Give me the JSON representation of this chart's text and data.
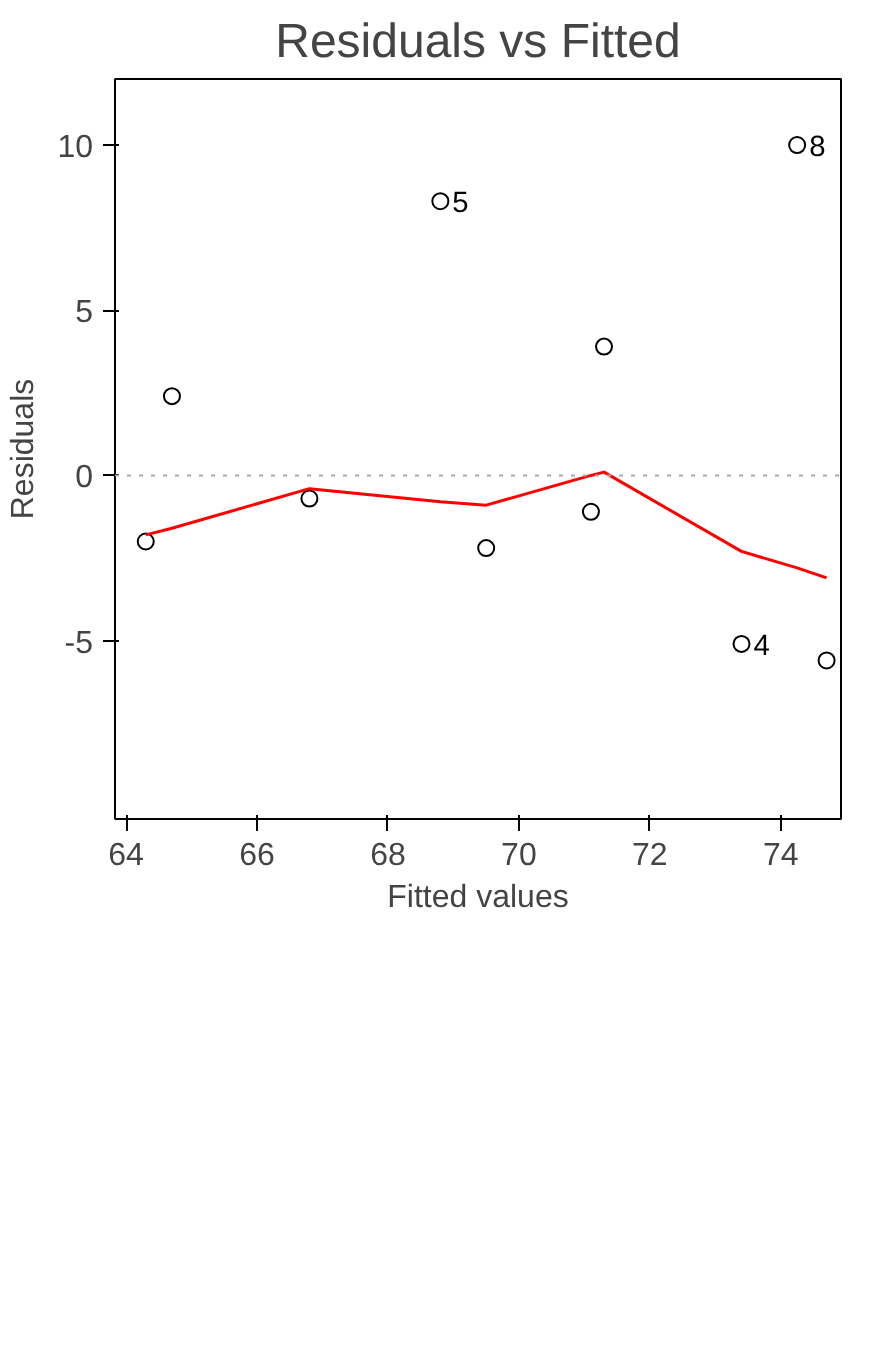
{
  "chart_data": {
    "type": "scatter",
    "title": "Residuals vs Fitted",
    "xlabel": "Fitted values",
    "ylabel": "Residuals",
    "series": [
      {
        "color": "#000000",
        "marker": "circle",
        "x": [
          74.25,
          74.7,
          73.4,
          71.3,
          71.1,
          68.8,
          69.5,
          66.8,
          64.7,
          64.3
        ],
        "values": [
          10.0,
          -5.6,
          -5.1,
          3.9,
          -1.1,
          8.3,
          -2.2,
          -0.7,
          2.4,
          -2.0
        ]
      },
      {
        "type": "line",
        "color": "#ff0000",
        "x": [
          64.3,
          64.7,
          66.8,
          68.8,
          69.5,
          71.1,
          71.3,
          73.4,
          74.25,
          74.7
        ],
        "values": [
          -1.8,
          -1.6,
          -0.4,
          -0.8,
          -0.9,
          0.0,
          0.1,
          -2.3,
          -2.8,
          -3.1
        ]
      }
    ],
    "annotations": [
      {
        "text": "8",
        "x": 74.25,
        "y": 10.0
      },
      {
        "text": "5",
        "x": 68.8,
        "y": 8.3
      },
      {
        "text": "4",
        "x": 73.4,
        "y": -5.1
      }
    ],
    "ref_lines": [
      {
        "axis": "y",
        "value": 0,
        "color": "#aaaaaa",
        "line_style": "dotted"
      }
    ],
    "xlim": [
      63.83,
      74.92
    ],
    "xticks": [
      64,
      66,
      68,
      70,
      72,
      74
    ],
    "ylim": [
      -10.4,
      12.0
    ],
    "yticks": [
      -5,
      0,
      5,
      10
    ],
    "grid": false
  }
}
